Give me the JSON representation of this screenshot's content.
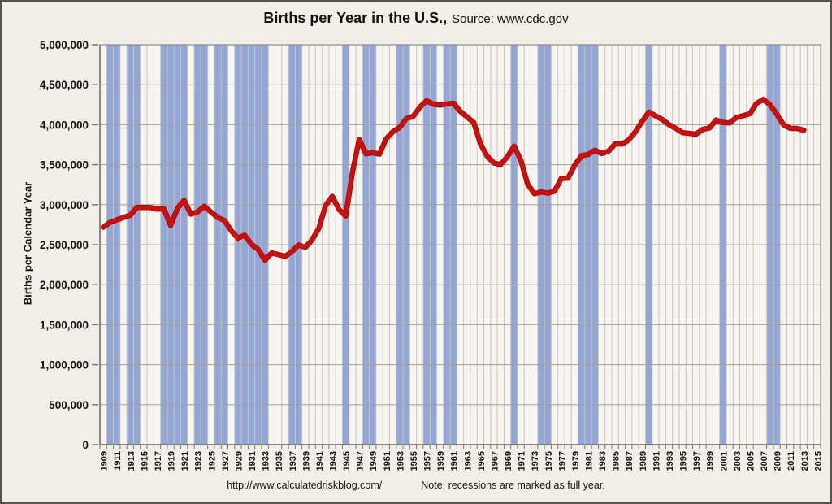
{
  "page": {
    "title_bold": "Births per Year in the U.S.,",
    "title_source": "Source: www.cdc.gov",
    "footer_url": "http://www.calculatedriskblog.com/",
    "footer_note": "Note: recessions are marked as full year."
  },
  "chart_data": {
    "type": "line",
    "title": "Births per Year in the U.S.",
    "subtitle": "Source: www.cdc.gov",
    "xlabel": "",
    "ylabel": "Births per Calendar Year",
    "ylim": [
      0,
      5000000
    ],
    "grid": true,
    "legend": "none",
    "background_color": "#F2EFE9",
    "x_axis": {
      "start_year": 1909,
      "end_year": 2015,
      "tick_labels": [
        "1909",
        "1911",
        "1913",
        "1915",
        "1917",
        "1919",
        "1921",
        "1923",
        "1925",
        "1927",
        "1929",
        "1931",
        "1933",
        "1935",
        "1937",
        "1939",
        "1941",
        "1943",
        "1945",
        "1947",
        "1949",
        "1951",
        "1953",
        "1955",
        "1957",
        "1959",
        "1961",
        "1963",
        "1965",
        "1967",
        "1969",
        "1971",
        "1973",
        "1975",
        "1977",
        "1979",
        "1981",
        "1983",
        "1985",
        "1987",
        "1989",
        "1991",
        "1993",
        "1995",
        "1997",
        "1999",
        "2001",
        "2003",
        "2005",
        "2007",
        "2009",
        "2011",
        "2013",
        "2015"
      ]
    },
    "y_tick_values": [
      0,
      500000,
      1000000,
      1500000,
      2000000,
      2500000,
      3000000,
      3500000,
      4000000,
      4500000,
      5000000
    ],
    "y_tick_labels": [
      "0",
      "500,000",
      "1,000,000",
      "1,500,000",
      "2,000,000",
      "2,500,000",
      "3,000,000",
      "3,500,000",
      "4,000,000",
      "4,500,000",
      "5,000,000"
    ],
    "series": [
      {
        "name": "Births per year",
        "color": "#CC1010",
        "x_start": 1909,
        "x_end": 2013,
        "values": [
          2718000,
          2777000,
          2809000,
          2840000,
          2869000,
          2966000,
          2965000,
          2964000,
          2944000,
          2948000,
          2740000,
          2950000,
          3055000,
          2882000,
          2910000,
          2979000,
          2909000,
          2839000,
          2802000,
          2674000,
          2582000,
          2618000,
          2506000,
          2440000,
          2307000,
          2396000,
          2377000,
          2355000,
          2413000,
          2496000,
          2466000,
          2559000,
          2703000,
          2989000,
          3104000,
          2939000,
          2858000,
          3411000,
          3817000,
          3637000,
          3649000,
          3632000,
          3823000,
          3913000,
          3965000,
          4078000,
          4104000,
          4218000,
          4300000,
          4255000,
          4245000,
          4258000,
          4268000,
          4167000,
          4098000,
          4027000,
          3760000,
          3606000,
          3521000,
          3502000,
          3600000,
          3731000,
          3556000,
          3258000,
          3137000,
          3160000,
          3144000,
          3168000,
          3327000,
          3333000,
          3494000,
          3612000,
          3629000,
          3681000,
          3639000,
          3669000,
          3761000,
          3757000,
          3809000,
          3910000,
          4041000,
          4158000,
          4111000,
          4065000,
          4000000,
          3953000,
          3900000,
          3891000,
          3881000,
          3942000,
          3959000,
          4059000,
          4026000,
          4022000,
          4090000,
          4112000,
          4138000,
          4266000,
          4316000,
          4248000,
          4131000,
          3999000,
          3954000,
          3953000,
          3932000
        ]
      }
    ],
    "recessions": {
      "color": "#93A6D5",
      "note": "recessions are marked as full year",
      "bands": [
        [
          1910,
          1911
        ],
        [
          1913,
          1914
        ],
        [
          1918,
          1919
        ],
        [
          1920,
          1921
        ],
        [
          1923,
          1924
        ],
        [
          1926,
          1927
        ],
        [
          1929,
          1933
        ],
        [
          1937,
          1938
        ],
        [
          1945,
          1945
        ],
        [
          1948,
          1949
        ],
        [
          1953,
          1954
        ],
        [
          1957,
          1958
        ],
        [
          1960,
          1961
        ],
        [
          1970,
          1970
        ],
        [
          1974,
          1975
        ],
        [
          1980,
          1982
        ],
        [
          1990,
          1990
        ],
        [
          2001,
          2001
        ],
        [
          2008,
          2009
        ]
      ]
    }
  }
}
